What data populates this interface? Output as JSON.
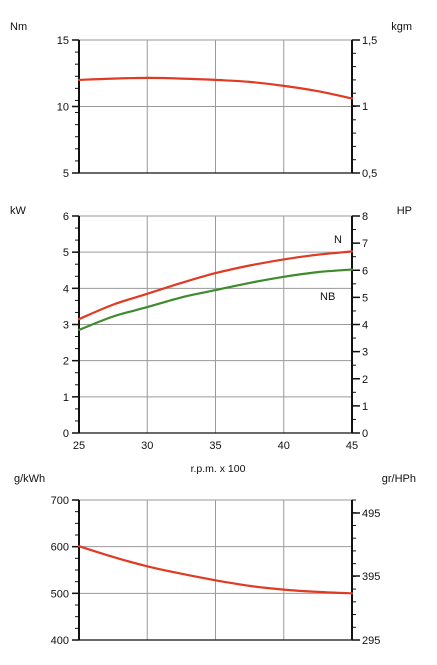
{
  "chart_data": [
    {
      "type": "line",
      "x": [
        25,
        27.5,
        30,
        32.5,
        35,
        37.5,
        40,
        42.5,
        45
      ],
      "xlim": [
        25,
        45
      ],
      "ylim": [
        5,
        15
      ],
      "ylabel": "Nm",
      "y2label": "kgm",
      "yticks": [
        "5",
        "10",
        "15"
      ],
      "y2ticks": [
        "0,5",
        "1",
        "1,5"
      ],
      "grid": true,
      "series": [
        {
          "name": "",
          "color": "#e03a22",
          "values": [
            12.0,
            12.1,
            12.15,
            12.1,
            12.0,
            11.85,
            11.55,
            11.15,
            10.6
          ]
        }
      ]
    },
    {
      "type": "line",
      "x": [
        25,
        27.5,
        30,
        32.5,
        35,
        37.5,
        40,
        42.5,
        45
      ],
      "xlim": [
        25,
        45
      ],
      "ylim": [
        0,
        6
      ],
      "ylabel": "kW",
      "y2label": "HP",
      "xlabel": "r.p.m. x 100",
      "xticks": [
        "25",
        "30",
        "35",
        "40",
        "45"
      ],
      "yticks": [
        "0",
        "1",
        "2",
        "3",
        "4",
        "5",
        "6"
      ],
      "y2ticks": [
        "0",
        "1",
        "2",
        "3",
        "4",
        "5",
        "6",
        "7",
        "8"
      ],
      "grid": true,
      "series": [
        {
          "name": "N",
          "color": "#e03a22",
          "values": [
            3.15,
            3.55,
            3.85,
            4.15,
            4.42,
            4.63,
            4.8,
            4.93,
            5.02
          ]
        },
        {
          "name": "NB",
          "color": "#3f8a2e",
          "values": [
            2.85,
            3.22,
            3.48,
            3.75,
            3.95,
            4.15,
            4.32,
            4.45,
            4.52
          ]
        }
      ]
    },
    {
      "type": "line",
      "x": [
        25,
        27.5,
        30,
        32.5,
        35,
        37.5,
        40,
        42.5,
        45
      ],
      "xlim": [
        25,
        45
      ],
      "ylim": [
        400,
        700
      ],
      "ylabel": "g/kWh",
      "y2label": "gr/HPh",
      "yticks": [
        "400",
        "500",
        "600",
        "700"
      ],
      "y2ticks": [
        "295",
        "395",
        "495"
      ],
      "grid": true,
      "series": [
        {
          "name": "",
          "color": "#e03a22",
          "values": [
            601,
            578,
            558,
            542,
            528,
            516,
            508,
            503,
            500
          ]
        }
      ]
    }
  ]
}
